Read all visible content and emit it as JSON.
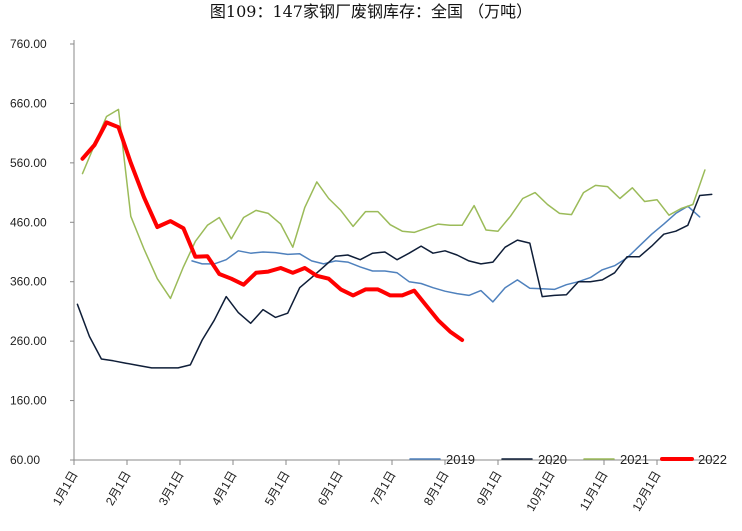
{
  "chart_data": {
    "type": "line",
    "title": "图109：147家钢厂废钢库存：全国 （万吨）",
    "xlabel": "",
    "ylabel": "",
    "ylim": [
      60,
      760
    ],
    "y_ticks": [
      "760.00",
      "660.00",
      "560.00",
      "460.00",
      "360.00",
      "260.00",
      "160.00",
      "60.00"
    ],
    "x_ticks": [
      "1月1日",
      "2月1日",
      "3月1日",
      "4月1日",
      "5月1日",
      "6月1日",
      "7月1日",
      "8月1日",
      "9月1日",
      "10月1日",
      "11月1日",
      "12月1日"
    ],
    "x_range_days": [
      0,
      365
    ],
    "grid": false,
    "legend_position": "bottom-right",
    "series": [
      {
        "name": "2019",
        "color": "#4F81BD",
        "width": 1.5,
        "points": [
          [
            66,
            395
          ],
          [
            72,
            390
          ],
          [
            79,
            390
          ],
          [
            86,
            397
          ],
          [
            93,
            412
          ],
          [
            100,
            408
          ],
          [
            107,
            410
          ],
          [
            114,
            409
          ],
          [
            121,
            406
          ],
          [
            128,
            407
          ],
          [
            135,
            395
          ],
          [
            142,
            390
          ],
          [
            149,
            395
          ],
          [
            156,
            393
          ],
          [
            163,
            385
          ],
          [
            170,
            378
          ],
          [
            177,
            378
          ],
          [
            184,
            375
          ],
          [
            191,
            360
          ],
          [
            198,
            357
          ],
          [
            205,
            350
          ],
          [
            212,
            344
          ],
          [
            219,
            340
          ],
          [
            226,
            337
          ],
          [
            233,
            345
          ],
          [
            240,
            326
          ],
          [
            247,
            350
          ],
          [
            254,
            363
          ],
          [
            261,
            349
          ],
          [
            268,
            348
          ],
          [
            275,
            347
          ],
          [
            282,
            355
          ],
          [
            289,
            360
          ],
          [
            296,
            367
          ],
          [
            303,
            380
          ],
          [
            310,
            387
          ],
          [
            317,
            400
          ],
          [
            324,
            420
          ],
          [
            331,
            440
          ],
          [
            338,
            457
          ],
          [
            345,
            475
          ],
          [
            352,
            487
          ],
          [
            359,
            469
          ]
        ]
      },
      {
        "name": "2020",
        "color": "#0F1E38",
        "width": 1.5,
        "points": [
          [
            2,
            322
          ],
          [
            9,
            268
          ],
          [
            16,
            230
          ],
          [
            23,
            227
          ],
          [
            30,
            223
          ],
          [
            37,
            219
          ],
          [
            44,
            215
          ],
          [
            51,
            215
          ],
          [
            58,
            215
          ],
          [
            65,
            220
          ],
          [
            72,
            262
          ],
          [
            79,
            295
          ],
          [
            86,
            335
          ],
          [
            93,
            308
          ],
          [
            100,
            290
          ],
          [
            107,
            313
          ],
          [
            114,
            300
          ],
          [
            121,
            307
          ],
          [
            128,
            350
          ],
          [
            135,
            367
          ],
          [
            142,
            385
          ],
          [
            149,
            403
          ],
          [
            156,
            405
          ],
          [
            163,
            397
          ],
          [
            170,
            408
          ],
          [
            177,
            410
          ],
          [
            184,
            397
          ],
          [
            191,
            408
          ],
          [
            198,
            420
          ],
          [
            205,
            408
          ],
          [
            212,
            412
          ],
          [
            219,
            405
          ],
          [
            226,
            395
          ],
          [
            233,
            390
          ],
          [
            240,
            393
          ],
          [
            247,
            418
          ],
          [
            254,
            430
          ],
          [
            261,
            425
          ],
          [
            268,
            335
          ],
          [
            275,
            337
          ],
          [
            282,
            338
          ],
          [
            289,
            360
          ],
          [
            296,
            360
          ],
          [
            303,
            363
          ],
          [
            310,
            375
          ],
          [
            317,
            402
          ],
          [
            324,
            402
          ],
          [
            331,
            420
          ],
          [
            338,
            440
          ],
          [
            345,
            445
          ],
          [
            352,
            455
          ],
          [
            359,
            505
          ],
          [
            366,
            507
          ]
        ]
      },
      {
        "name": "2021",
        "color": "#9BBB59",
        "width": 1.5,
        "points": [
          [
            5,
            542
          ],
          [
            12,
            590
          ],
          [
            19,
            638
          ],
          [
            26,
            650
          ],
          [
            33,
            470
          ],
          [
            40,
            415
          ],
          [
            47,
            365
          ],
          [
            54,
            332
          ],
          [
            61,
            385
          ],
          [
            68,
            428
          ],
          [
            75,
            455
          ],
          [
            82,
            468
          ],
          [
            89,
            432
          ],
          [
            96,
            468
          ],
          [
            103,
            480
          ],
          [
            110,
            475
          ],
          [
            117,
            457
          ],
          [
            124,
            418
          ],
          [
            131,
            485
          ],
          [
            138,
            528
          ],
          [
            145,
            500
          ],
          [
            152,
            480
          ],
          [
            159,
            453
          ],
          [
            166,
            478
          ],
          [
            173,
            478
          ],
          [
            180,
            456
          ],
          [
            187,
            445
          ],
          [
            194,
            443
          ],
          [
            201,
            450
          ],
          [
            208,
            457
          ],
          [
            215,
            455
          ],
          [
            222,
            455
          ],
          [
            229,
            488
          ],
          [
            236,
            447
          ],
          [
            243,
            445
          ],
          [
            250,
            470
          ],
          [
            257,
            500
          ],
          [
            264,
            510
          ],
          [
            271,
            490
          ],
          [
            278,
            475
          ],
          [
            285,
            473
          ],
          [
            292,
            510
          ],
          [
            299,
            522
          ],
          [
            306,
            520
          ],
          [
            313,
            500
          ],
          [
            320,
            518
          ],
          [
            327,
            495
          ],
          [
            334,
            498
          ],
          [
            341,
            472
          ],
          [
            348,
            483
          ],
          [
            355,
            490
          ],
          [
            362,
            548
          ]
        ]
      },
      {
        "name": "2022",
        "color": "#FF0000",
        "width": 4,
        "points": [
          [
            5,
            567
          ],
          [
            12,
            590
          ],
          [
            19,
            628
          ],
          [
            26,
            620
          ],
          [
            33,
            560
          ],
          [
            40,
            502
          ],
          [
            47,
            452
          ],
          [
            54,
            462
          ],
          [
            61,
            450
          ],
          [
            68,
            402
          ],
          [
            75,
            403
          ],
          [
            82,
            373
          ],
          [
            89,
            365
          ],
          [
            96,
            355
          ],
          [
            103,
            375
          ],
          [
            110,
            377
          ],
          [
            117,
            383
          ],
          [
            124,
            375
          ],
          [
            131,
            383
          ],
          [
            138,
            370
          ],
          [
            145,
            365
          ],
          [
            152,
            347
          ],
          [
            159,
            337
          ],
          [
            166,
            347
          ],
          [
            173,
            347
          ],
          [
            180,
            337
          ],
          [
            187,
            337
          ],
          [
            194,
            345
          ],
          [
            201,
            320
          ],
          [
            208,
            295
          ],
          [
            215,
            276
          ],
          [
            222,
            262
          ]
        ]
      }
    ]
  }
}
